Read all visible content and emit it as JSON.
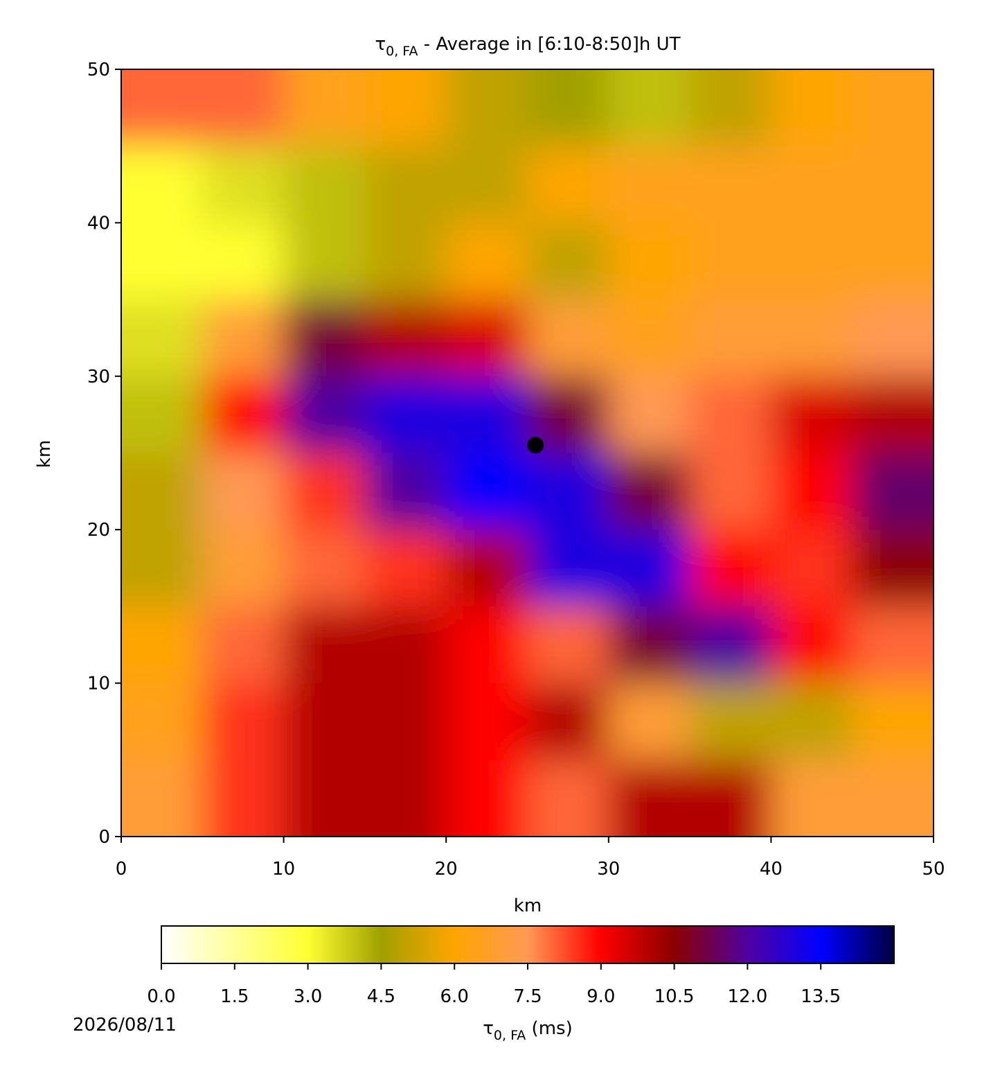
{
  "chart_data": {
    "type": "heatmap",
    "title": {
      "symbol": "τ",
      "subscript": "0, FA",
      "text": " - Average in [6:10-8:50]h UT"
    },
    "xlabel": "km",
    "ylabel": "km",
    "xlim": [
      0,
      50
    ],
    "ylim": [
      0,
      50
    ],
    "xticks": [
      0,
      10,
      20,
      30,
      40,
      50
    ],
    "yticks": [
      0,
      10,
      20,
      30,
      40,
      50
    ],
    "x": [
      2.5,
      7.5,
      12.5,
      17.5,
      22.5,
      27.5,
      32.5,
      37.5,
      42.5,
      47.5
    ],
    "y": [
      47.5,
      42.5,
      37.5,
      32.5,
      27.5,
      22.5,
      17.5,
      12.5,
      7.5,
      2.5
    ],
    "z": [
      [
        8,
        8,
        6.5,
        6,
        5,
        4.5,
        4,
        5,
        6,
        6.5
      ],
      [
        3,
        3.5,
        4,
        5,
        5,
        6,
        6.5,
        6.5,
        6.5,
        6.5
      ],
      [
        3,
        3,
        4,
        5,
        6,
        5,
        6,
        6.5,
        6.5,
        6.5
      ],
      [
        3.5,
        7,
        11,
        10,
        9.5,
        7,
        6.5,
        7,
        7,
        7.5
      ],
      [
        4,
        9,
        12,
        13,
        13,
        11,
        7.5,
        8,
        9.5,
        10
      ],
      [
        5,
        7.5,
        8.5,
        12,
        13.5,
        13,
        11,
        8,
        9,
        11.5
      ],
      [
        5,
        7,
        8,
        8.5,
        10,
        13,
        13,
        9,
        8.5,
        10.5
      ],
      [
        6,
        8,
        10,
        10,
        9,
        8,
        11,
        12,
        9,
        8
      ],
      [
        6.5,
        8.5,
        10,
        10,
        9,
        10,
        7,
        5,
        5,
        6
      ],
      [
        7,
        8.5,
        10,
        10,
        9,
        8,
        10,
        10,
        7,
        7
      ]
    ],
    "zlim": [
      0,
      15
    ],
    "zticks": [
      {
        "value": 0,
        "label": "0.0"
      },
      1.5,
      {
        "value": 3,
        "label": "3.0"
      },
      4.5,
      {
        "value": 6,
        "label": "6.0"
      },
      7.5,
      {
        "value": 9,
        "label": "9.0"
      },
      10.5,
      {
        "value": 12,
        "label": "12.0"
      },
      13.5
    ],
    "colors": [
      "#ffffff",
      "#ffff99",
      "#ffff33",
      "#a0a000",
      "#ffa500",
      "#ff9955",
      "#ff0000",
      "#8b0000",
      "#5000a0",
      "#0000ff",
      "#000040"
    ],
    "colorbar_label": {
      "symbol": "τ",
      "subscript": "0, FA",
      "text": " (ms)"
    },
    "marker": {
      "x": 25.5,
      "y": 25.5,
      "color": "#000000"
    }
  },
  "date": "2026/08/11"
}
